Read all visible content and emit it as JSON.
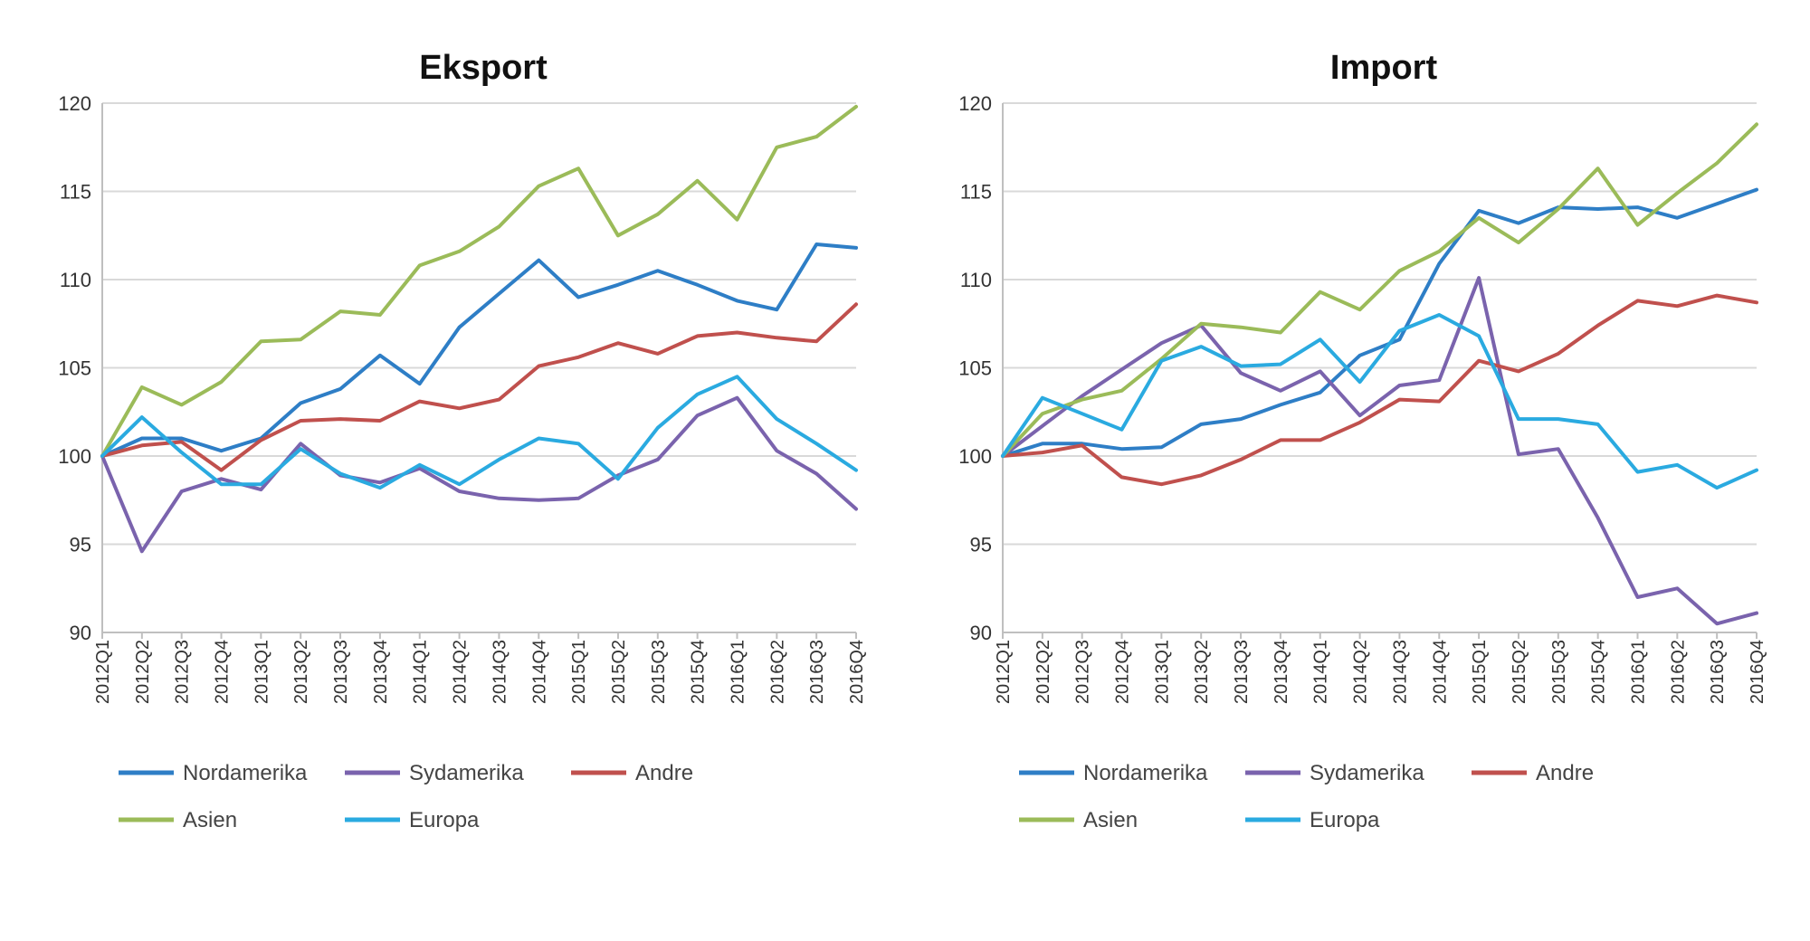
{
  "chart_data": [
    {
      "type": "line",
      "title": "Eksport",
      "ylim": [
        90,
        120
      ],
      "yticks": [
        90,
        95,
        100,
        105,
        110,
        115,
        120
      ],
      "grid": true,
      "legend_position": "bottom",
      "categories": [
        "2012Q1",
        "2012Q2",
        "2012Q3",
        "2012Q4",
        "2013Q1",
        "2013Q2",
        "2013Q3",
        "2013Q4",
        "2014Q1",
        "2014Q2",
        "2014Q3",
        "2014Q4",
        "2015Q1",
        "2015Q2",
        "2015Q3",
        "2015Q4",
        "2016Q1",
        "2016Q2",
        "2016Q3",
        "2016Q4"
      ],
      "series": [
        {
          "name": "Nordamerika",
          "color": "#2e7ec6",
          "values": [
            100,
            101,
            101,
            100.3,
            101,
            103,
            103.8,
            105.7,
            104.1,
            107.3,
            109.2,
            111.1,
            109,
            109.7,
            110.5,
            109.7,
            108.8,
            108.3,
            112,
            111.8
          ]
        },
        {
          "name": "Sydamerika",
          "color": "#7a63ad",
          "values": [
            100,
            94.6,
            98,
            98.7,
            98.1,
            100.7,
            98.9,
            98.5,
            99.3,
            98,
            97.6,
            97.5,
            97.6,
            98.9,
            99.8,
            102.3,
            103.3,
            100.3,
            99,
            97
          ]
        },
        {
          "name": "Andre",
          "color": "#c0504d",
          "values": [
            100,
            100.6,
            100.8,
            99.2,
            100.9,
            102,
            102.1,
            102,
            103.1,
            102.7,
            103.2,
            105.1,
            105.6,
            106.4,
            105.8,
            106.8,
            107,
            106.7,
            106.5,
            108.6
          ]
        },
        {
          "name": "Asien",
          "color": "#9bbb59",
          "values": [
            100,
            103.9,
            102.9,
            104.2,
            106.5,
            106.6,
            108.2,
            108,
            110.8,
            111.6,
            113,
            115.3,
            116.3,
            112.5,
            113.7,
            115.6,
            113.4,
            117.5,
            118.1,
            119.8
          ]
        },
        {
          "name": "Europa",
          "color": "#2aaae0",
          "values": [
            100,
            102.2,
            100.2,
            98.4,
            98.4,
            100.4,
            99,
            98.2,
            99.5,
            98.4,
            99.8,
            101,
            100.7,
            98.7,
            101.6,
            103.5,
            104.5,
            102.1,
            100.7,
            99.2
          ]
        }
      ]
    },
    {
      "type": "line",
      "title": "Import",
      "ylim": [
        90,
        120
      ],
      "yticks": [
        90,
        95,
        100,
        105,
        110,
        115,
        120
      ],
      "grid": true,
      "legend_position": "bottom",
      "categories": [
        "2012Q1",
        "2012Q2",
        "2012Q3",
        "2012Q4",
        "2013Q1",
        "2013Q2",
        "2013Q3",
        "2013Q4",
        "2014Q1",
        "2014Q2",
        "2014Q3",
        "2014Q4",
        "2015Q1",
        "2015Q2",
        "2015Q3",
        "2015Q4",
        "2016Q1",
        "2016Q2",
        "2016Q3",
        "2016Q4"
      ],
      "series": [
        {
          "name": "Nordamerika",
          "color": "#2e7ec6",
          "values": [
            100,
            100.7,
            100.7,
            100.4,
            100.5,
            101.8,
            102.1,
            102.9,
            103.6,
            105.7,
            106.6,
            110.9,
            113.9,
            113.2,
            114.1,
            114,
            114.1,
            113.5,
            114.3,
            115.1
          ]
        },
        {
          "name": "Sydamerika",
          "color": "#7a63ad",
          "values": [
            100,
            101.7,
            103.4,
            104.9,
            106.4,
            107.4,
            104.7,
            103.7,
            104.8,
            102.3,
            104,
            104.3,
            110.1,
            100.1,
            100.4,
            96.5,
            92,
            92.5,
            90.5,
            91.1
          ]
        },
        {
          "name": "Andre",
          "color": "#c0504d",
          "values": [
            100,
            100.2,
            100.6,
            98.8,
            98.4,
            98.9,
            99.8,
            100.9,
            100.9,
            101.9,
            103.2,
            103.1,
            105.4,
            104.8,
            105.8,
            107.4,
            108.8,
            108.5,
            109.1,
            108.7
          ]
        },
        {
          "name": "Asien",
          "color": "#9bbb59",
          "values": [
            100,
            102.4,
            103.2,
            103.7,
            105.5,
            107.5,
            107.3,
            107,
            109.3,
            108.3,
            110.5,
            111.6,
            113.5,
            112.1,
            114,
            116.3,
            113.1,
            114.9,
            116.6,
            118.8
          ]
        },
        {
          "name": "Europa",
          "color": "#2aaae0",
          "values": [
            100,
            103.3,
            102.4,
            101.5,
            105.4,
            106.2,
            105.1,
            105.2,
            106.6,
            104.2,
            107.1,
            108,
            106.8,
            102.1,
            102.1,
            101.8,
            99.1,
            99.5,
            98.2,
            99.2
          ]
        }
      ]
    }
  ]
}
